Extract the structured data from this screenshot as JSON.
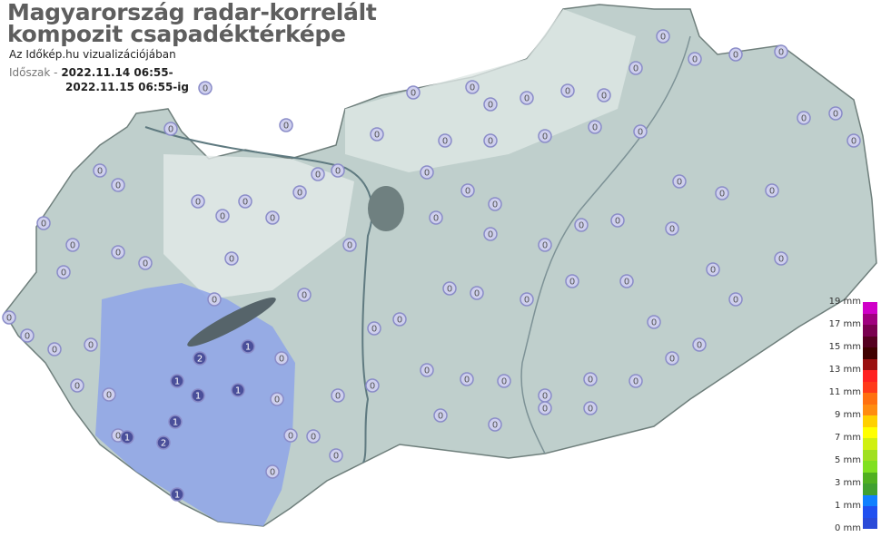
{
  "header": {
    "title_line1": "Magyarország radar-korrelált",
    "title_line2": "kompozit csapadéktérképe",
    "subtitle": "Az Időkép.hu vizualizációjában",
    "period_label": "Időszak -",
    "period_from": "2022.11.14 06:55-",
    "period_to": "2022.11.15 06:55-ig"
  },
  "legend": {
    "labels": [
      "19 mm",
      "17 mm",
      "15 mm",
      "13 mm",
      "11 mm",
      "9 mm",
      "7 mm",
      "5 mm",
      "3 mm",
      "1 mm",
      "0 mm"
    ],
    "colors": [
      "#d000c8",
      "#a0007f",
      "#7a0050",
      "#550020",
      "#400000",
      "#9a1010",
      "#ff2020",
      "#ff3a1a",
      "#ff7010",
      "#ff8c10",
      "#ffd000",
      "#ffff00",
      "#d0f010",
      "#a0e020",
      "#80e020",
      "#50b020",
      "#40a030",
      "#1080ff",
      "#2050f0",
      "#2a4ad8"
    ]
  },
  "map": {
    "land_color": "#bfcfcc",
    "rain_color": "#8ea4e8",
    "station_values": [
      0,
      0,
      0,
      0,
      0,
      0,
      0,
      0,
      0,
      0,
      0,
      0,
      0,
      0,
      0,
      0,
      0,
      0,
      0,
      0,
      0,
      0,
      0,
      0,
      0,
      0,
      0,
      0,
      0,
      0,
      0,
      0,
      0,
      0,
      0,
      0,
      0,
      0,
      0,
      0,
      0,
      0,
      0,
      0,
      0,
      0,
      0,
      0,
      0,
      0,
      0,
      0,
      0,
      0,
      0,
      0,
      0,
      0,
      0,
      0,
      0,
      0,
      0,
      0,
      0,
      0,
      0,
      0,
      0,
      0,
      0,
      0,
      0,
      0,
      0,
      0,
      0,
      0,
      0,
      0,
      1,
      1,
      2,
      1,
      1,
      1,
      2,
      1,
      0,
      0,
      0,
      0,
      0,
      0,
      0,
      0,
      0,
      0,
      0,
      0
    ]
  }
}
